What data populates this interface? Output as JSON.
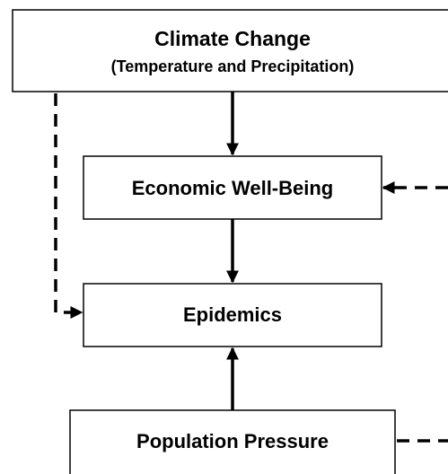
{
  "nodes": [
    {
      "label": "Climate Change",
      "sublabel": "(Temperature and Precipitation)"
    },
    {
      "label": "Economic Well-Being"
    },
    {
      "label": "Epidemics"
    },
    {
      "label": "Population Pressure"
    }
  ]
}
